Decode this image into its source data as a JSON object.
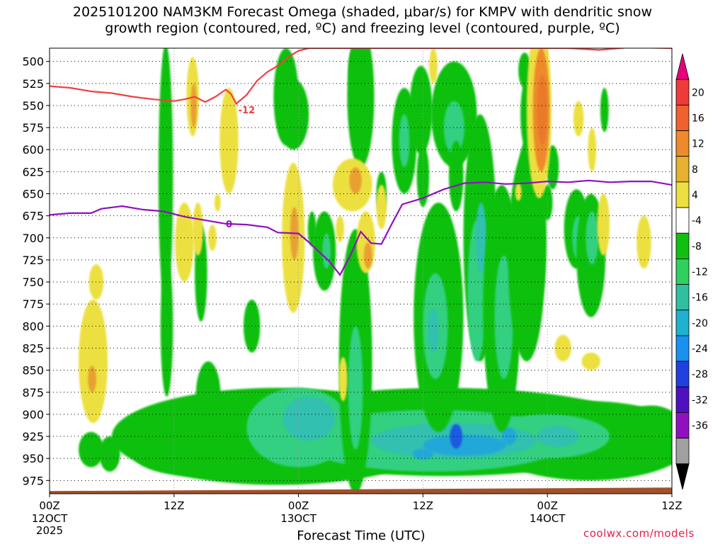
{
  "title_line1": "2025101200 NAM3KM Forecast Omega (shaded, μbar/s) for KMPV with dendritic snow",
  "title_line2": "growth region (contoured, red, ºC) and freezing level (contoured, purple, ºC)",
  "xlabel": "Forecast Time (UTC)",
  "watermark": "coolwx.com/models",
  "chart_data": {
    "type": "heatmap",
    "station": "KMPV",
    "model": "NAM3KM",
    "init": "2025101200",
    "variable": "Omega (μbar/s)",
    "x_ticks": [
      {
        "hour": 0,
        "label": "00Z",
        "date": "12OCT",
        "year": "2025"
      },
      {
        "hour": 12,
        "label": "12Z",
        "date": "",
        "year": ""
      },
      {
        "hour": 24,
        "label": "00Z",
        "date": "13OCT",
        "year": ""
      },
      {
        "hour": 36,
        "label": "12Z",
        "date": "",
        "year": ""
      },
      {
        "hour": 48,
        "label": "00Z",
        "date": "14OCT",
        "year": ""
      },
      {
        "hour": 60,
        "label": "12Z",
        "date": "",
        "year": ""
      }
    ],
    "xlim": [
      0,
      60
    ],
    "y_levels": [
      500,
      525,
      550,
      575,
      600,
      625,
      650,
      675,
      700,
      725,
      750,
      775,
      800,
      825,
      850,
      875,
      900,
      925,
      950,
      975
    ],
    "ylim": [
      485,
      990
    ],
    "y_reversed": true,
    "grid": true,
    "colorbar": {
      "labels": [
        "20",
        "16",
        "12",
        "8",
        "4",
        "-4",
        "-8",
        "-12",
        "-16",
        "-20",
        "-24",
        "-28",
        "-32",
        "-36"
      ],
      "colors": [
        "#e8007a",
        "#f03a3a",
        "#f06030",
        "#ee8a2c",
        "#e8b030",
        "#ece040",
        "#ffffff",
        "#10c010",
        "#30d060",
        "#30c0a0",
        "#20b0d0",
        "#1a90f0",
        "#2040e0",
        "#5010c0",
        "#9010c0",
        "#a0a0a0",
        "#000000"
      ]
    },
    "contours": [
      {
        "name": "-12",
        "color": "#f04040",
        "label_hour": 18.2,
        "label_pressure": 555,
        "points": [
          [
            0,
            528
          ],
          [
            2,
            530
          ],
          [
            4,
            534
          ],
          [
            6,
            536
          ],
          [
            8,
            540
          ],
          [
            10,
            543
          ],
          [
            12,
            545
          ],
          [
            13,
            543
          ],
          [
            14,
            540
          ],
          [
            15,
            546
          ],
          [
            16,
            540
          ],
          [
            17,
            532
          ],
          [
            17.5,
            537
          ],
          [
            18,
            548
          ],
          [
            19,
            538
          ],
          [
            20,
            522
          ],
          [
            21,
            512
          ],
          [
            22,
            505
          ],
          [
            23,
            495
          ],
          [
            24,
            488
          ],
          [
            25,
            485
          ],
          [
            30,
            485
          ],
          [
            40,
            485
          ],
          [
            46,
            485
          ],
          [
            50,
            485
          ],
          [
            53,
            487
          ],
          [
            56,
            484
          ],
          [
            60,
            485
          ]
        ]
      },
      {
        "name": "0",
        "color": "#9010c0",
        "label_hour": 17,
        "label_pressure": 684,
        "points": [
          [
            0,
            674
          ],
          [
            2,
            672
          ],
          [
            4,
            672
          ],
          [
            5,
            667
          ],
          [
            7,
            664
          ],
          [
            9,
            668
          ],
          [
            11,
            670
          ],
          [
            13,
            676
          ],
          [
            15,
            680
          ],
          [
            17,
            684
          ],
          [
            19,
            685
          ],
          [
            21,
            688
          ],
          [
            22,
            694
          ],
          [
            24,
            695
          ],
          [
            25,
            705
          ],
          [
            26,
            716
          ],
          [
            27,
            727
          ],
          [
            28,
            742
          ],
          [
            29,
            720
          ],
          [
            30,
            693
          ],
          [
            31,
            706
          ],
          [
            32,
            707
          ],
          [
            33,
            684
          ],
          [
            34,
            662
          ],
          [
            36,
            655
          ],
          [
            38,
            645
          ],
          [
            40,
            638
          ],
          [
            42,
            637
          ],
          [
            44,
            639
          ],
          [
            46,
            638
          ],
          [
            48,
            636
          ],
          [
            50,
            637
          ],
          [
            52,
            635
          ],
          [
            54,
            637
          ],
          [
            56,
            636
          ],
          [
            58,
            636
          ],
          [
            60,
            640
          ]
        ]
      }
    ],
    "terrain": {
      "color": "#a0522d",
      "top_pressure_start": 987,
      "top_pressure_end": 983
    }
  }
}
